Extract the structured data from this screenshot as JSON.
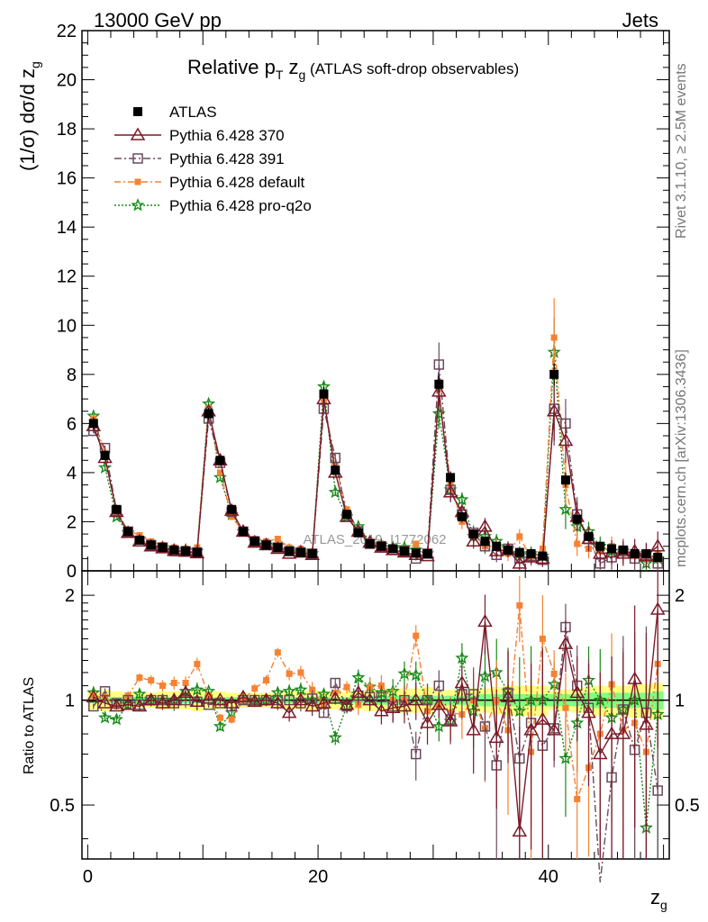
{
  "header": {
    "left": "13000 GeV pp",
    "right": "Jets"
  },
  "side_labels": {
    "rivet": "Rivet 3.1.10, ≥ 2.5M events",
    "mcplots": "mcplots.cern.ch [arXiv:1306.3436]"
  },
  "watermark": "ATLAS_2019_I1772062",
  "colors": {
    "atlas": "#000000",
    "p370": "#7b1a2a",
    "p391": "#6b4a5e",
    "pdefault": "#f58232",
    "pq2o": "#178a17",
    "band_outer": "#ffff80",
    "band_inner": "#80ff80"
  },
  "chart_data": [
    {
      "type": "line",
      "title": "Relative p_T z_g (ATLAS soft-drop observables)",
      "title_parts": {
        "main": "Relative p",
        "sub_T": "T",
        "mid": " z",
        "sub_g": "g",
        "rest": " (ATLAS soft-drop observables)"
      },
      "ylabel": "(1/σ) dσ/d z_g",
      "ylabel_parts": {
        "main": "(1/σ) dσ/d z",
        "sub": "g"
      },
      "xlim": [
        -0.5,
        50.5
      ],
      "ylim": [
        0,
        22
      ],
      "y_ticks": [
        "0",
        "2",
        "4",
        "6",
        "8",
        "10",
        "12",
        "14",
        "16",
        "18",
        "20",
        "22"
      ],
      "legend_position": "top-left",
      "legend": [
        "ATLAS",
        "Pythia 6.428 370",
        "Pythia 6.428 391",
        "Pythia 6.428 default",
        "Pythia 6.428 pro-q2o"
      ],
      "x": [
        0.5,
        1.5,
        2.5,
        3.5,
        4.5,
        5.5,
        6.5,
        7.5,
        8.5,
        9.5,
        10.5,
        11.5,
        12.5,
        13.5,
        14.5,
        15.5,
        16.5,
        17.5,
        18.5,
        19.5,
        20.5,
        21.5,
        22.5,
        23.5,
        24.5,
        25.5,
        26.5,
        27.5,
        28.5,
        29.5,
        30.5,
        31.5,
        32.5,
        33.5,
        34.5,
        35.5,
        36.5,
        37.5,
        38.5,
        39.5,
        40.5,
        41.5,
        42.5,
        43.5,
        44.5,
        45.5,
        46.5,
        47.5,
        48.5,
        49.5
      ],
      "series": [
        {
          "name": "ATLAS",
          "values": [
            6.0,
            4.7,
            2.5,
            1.6,
            1.25,
            1.05,
            0.95,
            0.85,
            0.8,
            0.75,
            6.4,
            4.5,
            2.5,
            1.6,
            1.2,
            1.05,
            0.95,
            0.8,
            0.75,
            0.7,
            7.2,
            4.1,
            2.3,
            1.55,
            1.1,
            1.0,
            0.9,
            0.8,
            0.72,
            0.7,
            7.6,
            3.8,
            2.2,
            1.5,
            1.2,
            1.0,
            0.85,
            0.75,
            0.7,
            0.6,
            8.0,
            3.7,
            2.1,
            1.4,
            1.0,
            0.9,
            0.85,
            0.7,
            0.7,
            0.55
          ]
        },
        {
          "name": "Pythia 6.428 370",
          "values": [
            5.9,
            4.6,
            2.4,
            1.55,
            1.2,
            1.0,
            0.92,
            0.82,
            0.78,
            0.72,
            6.5,
            4.5,
            2.45,
            1.6,
            1.15,
            1.05,
            0.9,
            0.7,
            0.75,
            0.65,
            7.0,
            4.0,
            2.2,
            1.6,
            1.15,
            0.95,
            0.85,
            0.75,
            0.65,
            0.6,
            7.3,
            3.2,
            2.4,
            1.2,
            1.8,
            0.8,
            0.85,
            0.3,
            0.55,
            0.5,
            6.5,
            5.3,
            2.2,
            1.3,
            0.7,
            0.75,
            0.7,
            0.8,
            0.6,
            1.0
          ]
        },
        {
          "name": "Pythia 6.428 391",
          "values": [
            5.7,
            5.0,
            2.45,
            1.6,
            1.2,
            1.05,
            0.95,
            0.8,
            0.8,
            0.75,
            6.2,
            4.4,
            2.4,
            1.6,
            1.2,
            1.05,
            0.95,
            0.8,
            0.75,
            0.7,
            6.6,
            4.6,
            2.2,
            1.6,
            1.1,
            1.0,
            0.85,
            0.8,
            0.5,
            0.7,
            8.4,
            3.3,
            2.3,
            1.55,
            1.0,
            0.65,
            0.9,
            0.5,
            0.6,
            0.45,
            6.6,
            6.0,
            2.3,
            1.3,
            0.3,
            0.55,
            0.8,
            0.5,
            0.65,
            0.3
          ]
        },
        {
          "name": "Pythia 6.428 default",
          "values": [
            6.2,
            4.8,
            2.4,
            1.65,
            1.45,
            1.2,
            1.05,
            0.95,
            0.9,
            0.95,
            6.6,
            4.0,
            2.2,
            1.6,
            1.3,
            1.2,
            1.3,
            0.95,
            0.9,
            0.75,
            7.0,
            4.3,
            2.5,
            1.5,
            1.2,
            1.1,
            0.9,
            0.8,
            1.1,
            0.65,
            7.4,
            3.5,
            2.0,
            1.5,
            1.0,
            1.0,
            0.7,
            1.4,
            0.5,
            0.9,
            9.5,
            3.5,
            1.1,
            0.9,
            0.8,
            1.0,
            0.7,
            0.6,
            0.5,
            0.7
          ]
        },
        {
          "name": "Pythia 6.428 pro-q2o",
          "values": [
            6.3,
            4.2,
            2.2,
            1.55,
            1.3,
            1.05,
            0.95,
            0.85,
            0.85,
            0.8,
            6.8,
            3.8,
            2.3,
            1.6,
            1.2,
            1.05,
            1.0,
            0.85,
            0.8,
            0.7,
            7.5,
            3.2,
            2.2,
            1.8,
            1.2,
            1.05,
            0.95,
            0.95,
            0.85,
            0.7,
            6.4,
            3.3,
            2.9,
            1.4,
            1.4,
            1.2,
            0.9,
            0.7,
            0.7,
            0.6,
            8.9,
            2.5,
            1.8,
            1.6,
            1.0,
            0.8,
            0.8,
            0.7,
            0.3,
            0.5
          ]
        }
      ],
      "y_errors": {
        "ATLAS": [
          0.25,
          0.2,
          0.12,
          0.08,
          0.06,
          0.05,
          0.05,
          0.05,
          0.04,
          0.05,
          0.25,
          0.2,
          0.12,
          0.08,
          0.06,
          0.05,
          0.05,
          0.05,
          0.05,
          0.05,
          0.3,
          0.2,
          0.12,
          0.1,
          0.07,
          0.07,
          0.07,
          0.06,
          0.06,
          0.06,
          0.35,
          0.25,
          0.15,
          0.12,
          0.1,
          0.1,
          0.1,
          0.1,
          0.1,
          0.1,
          0.45,
          0.3,
          0.2,
          0.15,
          0.15,
          0.15,
          0.15,
          0.12,
          0.12,
          0.12
        ],
        "Pythia 6.428 370": [
          0.1,
          0.1,
          0.05,
          0.05,
          0.04,
          0.04,
          0.04,
          0.04,
          0.04,
          0.04,
          0.12,
          0.1,
          0.06,
          0.05,
          0.04,
          0.04,
          0.04,
          0.04,
          0.04,
          0.04,
          0.2,
          0.15,
          0.1,
          0.1,
          0.08,
          0.08,
          0.08,
          0.08,
          0.08,
          0.08,
          0.6,
          0.4,
          0.3,
          0.3,
          0.35,
          0.3,
          0.3,
          0.3,
          0.3,
          0.3,
          1.2,
          0.9,
          0.6,
          0.5,
          0.5,
          0.5,
          0.5,
          0.5,
          0.5,
          0.6
        ],
        "Pythia 6.428 391": [
          0.1,
          0.1,
          0.05,
          0.05,
          0.04,
          0.04,
          0.04,
          0.04,
          0.04,
          0.04,
          0.12,
          0.1,
          0.06,
          0.05,
          0.04,
          0.04,
          0.04,
          0.04,
          0.04,
          0.04,
          0.2,
          0.15,
          0.1,
          0.1,
          0.08,
          0.08,
          0.08,
          0.08,
          0.08,
          0.08,
          0.9,
          0.5,
          0.35,
          0.3,
          0.3,
          0.3,
          0.3,
          0.3,
          0.3,
          0.3,
          1.5,
          1.0,
          0.7,
          0.5,
          0.5,
          0.5,
          0.5,
          0.5,
          0.5,
          0.5
        ],
        "Pythia 6.428 default": [
          0.1,
          0.1,
          0.05,
          0.05,
          0.04,
          0.04,
          0.04,
          0.04,
          0.04,
          0.04,
          0.12,
          0.1,
          0.06,
          0.05,
          0.04,
          0.04,
          0.04,
          0.04,
          0.04,
          0.04,
          0.2,
          0.15,
          0.1,
          0.1,
          0.08,
          0.08,
          0.08,
          0.08,
          0.08,
          0.08,
          0.6,
          0.4,
          0.3,
          0.3,
          0.3,
          0.3,
          0.3,
          0.3,
          0.3,
          0.3,
          1.6,
          0.9,
          0.5,
          0.4,
          0.4,
          0.4,
          0.4,
          0.4,
          0.4,
          0.4
        ],
        "Pythia 6.428 pro-q2o": [
          0.1,
          0.1,
          0.05,
          0.05,
          0.04,
          0.04,
          0.04,
          0.04,
          0.04,
          0.04,
          0.12,
          0.1,
          0.06,
          0.05,
          0.04,
          0.04,
          0.04,
          0.04,
          0.04,
          0.04,
          0.25,
          0.15,
          0.1,
          0.1,
          0.08,
          0.08,
          0.08,
          0.08,
          0.08,
          0.08,
          0.6,
          0.4,
          0.3,
          0.3,
          0.3,
          0.3,
          0.3,
          0.3,
          0.3,
          0.3,
          1.4,
          0.8,
          0.5,
          0.4,
          0.4,
          0.4,
          0.4,
          0.4,
          0.4,
          0.4
        ]
      }
    },
    {
      "type": "line",
      "title": "",
      "ylabel": "Ratio to ATLAS",
      "xlabel": "z_g",
      "xlabel_parts": {
        "main": "z",
        "sub": "g"
      },
      "xlim": [
        -0.5,
        50.5
      ],
      "ylim": [
        0.35,
        2.35
      ],
      "x_ticks": [
        "0",
        "20",
        "40"
      ],
      "y_ticks": [
        "0.5",
        "1",
        "2"
      ],
      "reference_line": 1,
      "band_note": "ATLAS uncertainty bands (outer: total, inner: statistical)",
      "band_outer": [
        0.06,
        0.07,
        0.06,
        0.05,
        0.05,
        0.05,
        0.06,
        0.06,
        0.06,
        0.07,
        0.06,
        0.06,
        0.05,
        0.05,
        0.05,
        0.05,
        0.05,
        0.06,
        0.06,
        0.07,
        0.06,
        0.06,
        0.06,
        0.06,
        0.07,
        0.07,
        0.08,
        0.08,
        0.08,
        0.09,
        0.06,
        0.07,
        0.07,
        0.08,
        0.08,
        0.09,
        0.1,
        0.1,
        0.1,
        0.1,
        0.06,
        0.07,
        0.08,
        0.09,
        0.1,
        0.1,
        0.1,
        0.11,
        0.11,
        0.12
      ],
      "band_inner": [
        0.02,
        0.02,
        0.02,
        0.02,
        0.02,
        0.02,
        0.02,
        0.02,
        0.02,
        0.02,
        0.02,
        0.02,
        0.02,
        0.02,
        0.02,
        0.02,
        0.02,
        0.02,
        0.02,
        0.02,
        0.02,
        0.02,
        0.02,
        0.02,
        0.03,
        0.03,
        0.03,
        0.03,
        0.03,
        0.03,
        0.03,
        0.03,
        0.03,
        0.03,
        0.04,
        0.04,
        0.04,
        0.04,
        0.04,
        0.04,
        0.04,
        0.04,
        0.04,
        0.05,
        0.05,
        0.05,
        0.05,
        0.05,
        0.05,
        0.06
      ],
      "x": [
        0.5,
        1.5,
        2.5,
        3.5,
        4.5,
        5.5,
        6.5,
        7.5,
        8.5,
        9.5,
        10.5,
        11.5,
        12.5,
        13.5,
        14.5,
        15.5,
        16.5,
        17.5,
        18.5,
        19.5,
        20.5,
        21.5,
        22.5,
        23.5,
        24.5,
        25.5,
        26.5,
        27.5,
        28.5,
        29.5,
        30.5,
        31.5,
        32.5,
        33.5,
        34.5,
        35.5,
        36.5,
        37.5,
        38.5,
        39.5,
        40.5,
        41.5,
        42.5,
        43.5,
        44.5,
        45.5,
        46.5,
        47.5,
        48.5,
        49.5
      ],
      "series": [
        {
          "name": "Pythia 6.428 370",
          "values": [
            1.02,
            0.98,
            0.96,
            0.97,
            0.96,
            1.0,
            0.98,
            1.0,
            1.05,
            0.99,
            1.01,
            1.0,
            0.98,
            1.02,
            0.99,
            1.0,
            0.98,
            0.92,
            1.0,
            0.96,
            0.98,
            1.01,
            0.97,
            1.05,
            1.0,
            0.93,
            0.95,
            0.96,
            1.0,
            0.86,
            0.97,
            0.87,
            1.12,
            0.82,
            1.68,
            0.78,
            1.02,
            0.42,
            0.82,
            0.88,
            0.82,
            1.45,
            1.05,
            0.92,
            0.7,
            0.8,
            0.8,
            1.15,
            0.85,
            1.82
          ]
        },
        {
          "name": "Pythia 6.428 391",
          "values": [
            0.96,
            1.06,
            0.98,
            1.0,
            0.97,
            1.0,
            1.0,
            0.98,
            1.0,
            0.99,
            0.97,
            0.98,
            0.96,
            1.0,
            1.0,
            1.0,
            1.0,
            1.0,
            0.98,
            1.01,
            0.92,
            1.12,
            0.96,
            1.03,
            1.02,
            1.02,
            0.96,
            1.0,
            0.7,
            1.0,
            1.1,
            0.88,
            1.04,
            1.04,
            0.84,
            0.65,
            1.05,
            0.68,
            0.86,
            0.74,
            0.83,
            1.62,
            1.1,
            0.95,
            0.3,
            0.6,
            0.94,
            0.72,
            0.92,
            0.55
          ]
        },
        {
          "name": "Pythia 6.428 default",
          "values": [
            1.03,
            1.02,
            0.96,
            1.03,
            1.16,
            1.14,
            1.1,
            1.12,
            1.12,
            1.27,
            1.03,
            0.89,
            0.88,
            1.0,
            1.08,
            1.14,
            1.37,
            1.19,
            1.2,
            1.07,
            0.97,
            1.05,
            1.09,
            0.97,
            1.09,
            1.1,
            1.0,
            1.0,
            1.53,
            0.93,
            0.97,
            0.92,
            0.91,
            1.0,
            0.83,
            1.0,
            0.82,
            1.87,
            0.71,
            1.5,
            1.19,
            0.95,
            0.52,
            0.64,
            0.8,
            1.11,
            0.82,
            0.86,
            0.71,
            1.27
          ]
        },
        {
          "name": "Pythia 6.428 pro-q2o",
          "values": [
            1.05,
            0.89,
            0.88,
            0.97,
            1.04,
            1.0,
            1.0,
            1.0,
            1.06,
            1.07,
            1.06,
            0.84,
            0.92,
            1.0,
            1.0,
            1.0,
            1.05,
            1.06,
            1.07,
            1.0,
            1.04,
            0.78,
            0.96,
            1.16,
            1.09,
            1.05,
            1.06,
            1.19,
            1.18,
            1.0,
            0.84,
            0.87,
            1.32,
            0.93,
            1.17,
            1.2,
            1.06,
            0.93,
            1.0,
            1.0,
            1.11,
            0.68,
            0.86,
            1.14,
            1.0,
            0.89,
            0.94,
            1.0,
            0.43,
            0.91
          ]
        }
      ]
    }
  ]
}
